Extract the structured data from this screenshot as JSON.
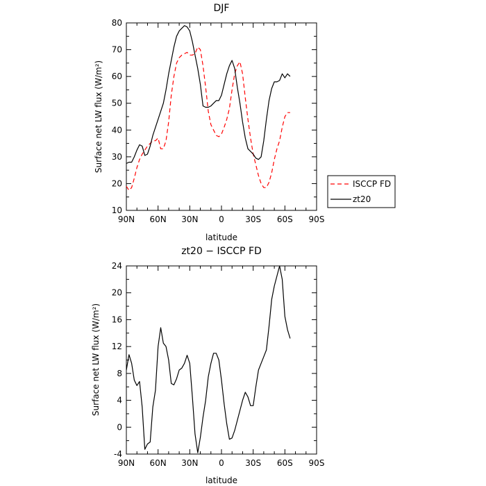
{
  "chart_data": [
    {
      "type": "line",
      "title": "DJF",
      "xlabel": "latitude",
      "ylabel": "Surface net LW flux (W/m²)",
      "xlim": [
        90,
        -90
      ],
      "ylim": [
        10,
        80
      ],
      "xticks": [
        90,
        60,
        30,
        0,
        -30,
        -60,
        -90
      ],
      "xtick_labels": [
        "90N",
        "60N",
        "30N",
        "0",
        "30S",
        "60S",
        "90S"
      ],
      "yticks": [
        10,
        20,
        30,
        40,
        50,
        60,
        70,
        80
      ],
      "legend_position": "right",
      "series": [
        {
          "name": "ISCCP FD",
          "color": "#ff0000",
          "dash": "dashed",
          "points": [
            [
              90,
              19
            ],
            [
              87.5,
              17.5
            ],
            [
              85,
              18.5
            ],
            [
              82.5,
              22
            ],
            [
              80,
              26
            ],
            [
              77.5,
              29
            ],
            [
              75,
              31
            ],
            [
              72.5,
              32.5
            ],
            [
              70,
              34
            ],
            [
              67.5,
              35
            ],
            [
              65,
              36
            ],
            [
              62.5,
              36
            ],
            [
              60,
              37
            ],
            [
              57.5,
              33
            ],
            [
              55,
              33
            ],
            [
              52.5,
              36
            ],
            [
              50,
              43
            ],
            [
              47.5,
              53
            ],
            [
              45,
              60
            ],
            [
              42.5,
              65
            ],
            [
              40,
              67
            ],
            [
              37.5,
              68
            ],
            [
              35,
              68.5
            ],
            [
              32.5,
              69
            ],
            [
              30,
              68
            ],
            [
              27.5,
              68
            ],
            [
              25,
              68.5
            ],
            [
              22.5,
              71
            ],
            [
              20,
              70
            ],
            [
              17.5,
              64
            ],
            [
              15,
              56
            ],
            [
              12.5,
              47
            ],
            [
              10,
              42
            ],
            [
              7.5,
              40
            ],
            [
              5,
              38
            ],
            [
              2.5,
              37.5
            ],
            [
              0,
              38.5
            ],
            [
              -2.5,
              41
            ],
            [
              -5,
              44
            ],
            [
              -7.5,
              48
            ],
            [
              -10,
              55
            ],
            [
              -12.5,
              61
            ],
            [
              -15,
              64
            ],
            [
              -17.5,
              65.5
            ],
            [
              -20,
              61
            ],
            [
              -22.5,
              52
            ],
            [
              -25,
              44
            ],
            [
              -27.5,
              37
            ],
            [
              -30,
              31
            ],
            [
              -32.5,
              27
            ],
            [
              -35,
              23
            ],
            [
              -37.5,
              20
            ],
            [
              -40,
              18.5
            ],
            [
              -42.5,
              18.5
            ],
            [
              -45,
              20.5
            ],
            [
              -47.5,
              24
            ],
            [
              -50,
              29
            ],
            [
              -52.5,
              33
            ],
            [
              -55,
              36
            ],
            [
              -57.5,
              41
            ],
            [
              -60,
              45
            ],
            [
              -62.5,
              46.5
            ],
            [
              -65,
              46.5
            ]
          ]
        },
        {
          "name": "zt20",
          "color": "#000000",
          "dash": "solid",
          "points": [
            [
              90,
              27.5
            ],
            [
              87.5,
              28
            ],
            [
              85,
              28
            ],
            [
              82.5,
              30
            ],
            [
              80,
              32.5
            ],
            [
              77.5,
              34.5
            ],
            [
              75,
              34
            ],
            [
              72.5,
              30.5
            ],
            [
              70,
              31
            ],
            [
              67.5,
              34
            ],
            [
              65,
              38
            ],
            [
              62.5,
              41
            ],
            [
              60,
              44
            ],
            [
              57.5,
              47
            ],
            [
              55,
              50
            ],
            [
              52.5,
              55
            ],
            [
              50,
              61
            ],
            [
              47.5,
              66
            ],
            [
              45,
              71
            ],
            [
              42.5,
              75
            ],
            [
              40,
              77
            ],
            [
              37.5,
              78
            ],
            [
              35,
              79
            ],
            [
              32.5,
              78.5
            ],
            [
              30,
              77
            ],
            [
              27.5,
              73
            ],
            [
              25,
              68
            ],
            [
              22.5,
              63
            ],
            [
              20,
              57
            ],
            [
              17.5,
              49
            ],
            [
              15,
              48.5
            ],
            [
              12.5,
              48.5
            ],
            [
              10,
              49
            ],
            [
              7.5,
              50
            ],
            [
              5,
              51
            ],
            [
              2.5,
              51
            ],
            [
              0,
              53
            ],
            [
              -2.5,
              57
            ],
            [
              -5,
              61
            ],
            [
              -7.5,
              64
            ],
            [
              -10,
              66
            ],
            [
              -12.5,
              63
            ],
            [
              -15,
              56
            ],
            [
              -17.5,
              50
            ],
            [
              -20,
              43
            ],
            [
              -22.5,
              37
            ],
            [
              -25,
              33
            ],
            [
              -27.5,
              32
            ],
            [
              -30,
              31
            ],
            [
              -32.5,
              29.5
            ],
            [
              -35,
              29
            ],
            [
              -37.5,
              30
            ],
            [
              -40,
              36
            ],
            [
              -42.5,
              44
            ],
            [
              -45,
              51
            ],
            [
              -47.5,
              55.5
            ],
            [
              -50,
              58
            ],
            [
              -52.5,
              58
            ],
            [
              -55,
              58.5
            ],
            [
              -57.5,
              61
            ],
            [
              -60,
              59.5
            ],
            [
              -62.5,
              61
            ],
            [
              -65,
              60
            ]
          ]
        }
      ]
    },
    {
      "type": "line",
      "title": "zt20 − ISCCP FD",
      "xlabel": "latitude",
      "ylabel": "Surface net LW flux (W/m²)",
      "xlim": [
        90,
        -90
      ],
      "ylim": [
        -4,
        24
      ],
      "xticks": [
        90,
        60,
        30,
        0,
        -30,
        -60,
        -90
      ],
      "xtick_labels": [
        "90N",
        "60N",
        "30N",
        "0",
        "30S",
        "60S",
        "90S"
      ],
      "yticks": [
        -4,
        0,
        4,
        8,
        12,
        16,
        20,
        24
      ],
      "series": [
        {
          "name": "",
          "color": "#000000",
          "dash": "solid",
          "points": [
            [
              90,
              8.5
            ],
            [
              87.5,
              10.8
            ],
            [
              85,
              9.5
            ],
            [
              82.5,
              7
            ],
            [
              80,
              6.2
            ],
            [
              77.5,
              6.8
            ],
            [
              75,
              3
            ],
            [
              72.5,
              -3.3
            ],
            [
              70,
              -2.5
            ],
            [
              67.5,
              -2.2
            ],
            [
              65,
              3
            ],
            [
              62.5,
              5.5
            ],
            [
              60,
              12
            ],
            [
              57.5,
              14.8
            ],
            [
              55,
              12.5
            ],
            [
              52.5,
              12
            ],
            [
              50,
              10
            ],
            [
              47.5,
              6.5
            ],
            [
              45,
              6.3
            ],
            [
              42.5,
              7.2
            ],
            [
              40,
              8.5
            ],
            [
              37.5,
              8.8
            ],
            [
              35,
              9.5
            ],
            [
              32.5,
              10.7
            ],
            [
              30,
              9.5
            ],
            [
              27.5,
              4.5
            ],
            [
              25,
              -1
            ],
            [
              22.5,
              -3.8
            ],
            [
              20,
              -1.5
            ],
            [
              17.5,
              1.5
            ],
            [
              15,
              4
            ],
            [
              12.5,
              7.5
            ],
            [
              10,
              9.5
            ],
            [
              7.5,
              11
            ],
            [
              5,
              11
            ],
            [
              2.5,
              10
            ],
            [
              0,
              7
            ],
            [
              -2.5,
              3.5
            ],
            [
              -5,
              0.5
            ],
            [
              -7.5,
              -1.8
            ],
            [
              -10,
              -1.6
            ],
            [
              -12.5,
              -0.5
            ],
            [
              -15,
              1
            ],
            [
              -17.5,
              2.5
            ],
            [
              -20,
              4
            ],
            [
              -22.5,
              5.2
            ],
            [
              -25,
              4.5
            ],
            [
              -27.5,
              3.2
            ],
            [
              -30,
              3.2
            ],
            [
              -32.5,
              6
            ],
            [
              -35,
              8.5
            ],
            [
              -37.5,
              9.5
            ],
            [
              -40,
              10.5
            ],
            [
              -42.5,
              11.5
            ],
            [
              -45,
              15
            ],
            [
              -47.5,
              19
            ],
            [
              -50,
              21
            ],
            [
              -52.5,
              22.5
            ],
            [
              -55,
              24
            ],
            [
              -57.5,
              22
            ],
            [
              -60,
              16.5
            ],
            [
              -62.5,
              14.5
            ],
            [
              -65,
              13.2
            ]
          ]
        }
      ]
    }
  ]
}
